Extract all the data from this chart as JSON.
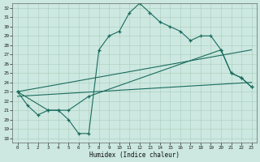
{
  "xlabel": "Humidex (Indice chaleur)",
  "xlim": [
    -0.5,
    23.5
  ],
  "ylim": [
    17.5,
    32.5
  ],
  "xticks": [
    0,
    1,
    2,
    3,
    4,
    5,
    6,
    7,
    8,
    9,
    10,
    11,
    12,
    13,
    14,
    15,
    16,
    17,
    18,
    19,
    20,
    21,
    22,
    23
  ],
  "yticks": [
    18,
    19,
    20,
    21,
    22,
    23,
    24,
    25,
    26,
    27,
    28,
    29,
    30,
    31,
    32
  ],
  "bg_color": "#cce8e0",
  "line_color": "#1a6b5e",
  "grid_color": "#aaccbb",
  "line1_x": [
    0,
    1,
    2,
    3,
    4,
    5,
    6,
    7,
    8,
    9,
    10,
    11,
    12,
    13,
    14,
    15,
    16,
    17,
    18,
    19,
    20,
    21,
    22,
    23
  ],
  "line1_y": [
    23.0,
    21.5,
    20.5,
    21.0,
    21.0,
    20.0,
    18.5,
    18.5,
    27.5,
    29.0,
    29.5,
    31.5,
    32.5,
    31.5,
    30.5,
    30.0,
    29.5,
    28.5,
    29.0,
    29.0,
    27.5,
    25.0,
    24.5,
    23.5
  ],
  "line2_x": [
    0,
    3,
    4,
    5,
    7,
    20,
    21,
    22,
    23
  ],
  "line2_y": [
    23.0,
    21.0,
    21.0,
    21.0,
    22.5,
    27.5,
    25.0,
    24.5,
    23.5
  ],
  "line3_x": [
    0,
    23
  ],
  "line3_y": [
    23.0,
    27.5
  ],
  "line4_x": [
    0,
    23
  ],
  "line4_y": [
    22.5,
    24.0
  ]
}
